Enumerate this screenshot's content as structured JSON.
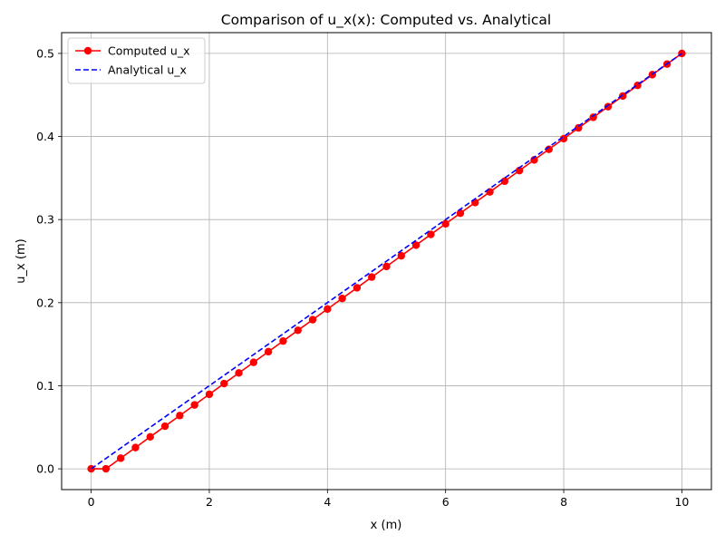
{
  "chart_data": {
    "type": "line",
    "title": "Comparison of u_x(x): Computed vs. Analytical",
    "xlabel": "x (m)",
    "ylabel": "u_x (m)",
    "xlim": [
      -0.5,
      10.5
    ],
    "ylim": [
      -0.025,
      0.525
    ],
    "xticks": [
      0,
      2,
      4,
      6,
      8,
      10
    ],
    "yticks": [
      0.0,
      0.1,
      0.2,
      0.3,
      0.4,
      0.5
    ],
    "xtick_labels": [
      "0",
      "2",
      "4",
      "6",
      "8",
      "10"
    ],
    "ytick_labels": [
      "0.0",
      "0.1",
      "0.2",
      "0.3",
      "0.4",
      "0.5"
    ],
    "grid": true,
    "legend_position": "top-left",
    "series": [
      {
        "name": "Computed u_x",
        "color": "#ff0000",
        "style": "solid-with-circle-markers",
        "x": [
          0,
          0.25,
          0.5,
          0.75,
          1.0,
          1.25,
          1.5,
          1.75,
          2.0,
          2.25,
          2.5,
          2.75,
          3.0,
          3.25,
          3.5,
          3.75,
          4.0,
          4.25,
          4.5,
          4.75,
          5.0,
          5.25,
          5.5,
          5.75,
          6.0,
          6.25,
          6.5,
          6.75,
          7.0,
          7.25,
          7.5,
          7.75,
          8.0,
          8.25,
          8.5,
          8.75,
          9.0,
          9.25,
          9.5,
          9.75,
          10.0
        ],
        "y": [
          0.0,
          0.0,
          0.0128,
          0.0256,
          0.0385,
          0.0513,
          0.0641,
          0.0769,
          0.0897,
          0.1026,
          0.1154,
          0.1282,
          0.141,
          0.1538,
          0.1667,
          0.1795,
          0.1923,
          0.2051,
          0.2179,
          0.2308,
          0.2436,
          0.2564,
          0.2692,
          0.2821,
          0.2949,
          0.3077,
          0.3205,
          0.3333,
          0.3462,
          0.359,
          0.3718,
          0.3846,
          0.3974,
          0.4103,
          0.4231,
          0.4359,
          0.4487,
          0.4615,
          0.4744,
          0.4872,
          0.5
        ]
      },
      {
        "name": "Analytical u_x",
        "color": "#0000ff",
        "style": "dashed",
        "x": [
          0,
          10
        ],
        "y": [
          0.0,
          0.5
        ]
      }
    ]
  }
}
